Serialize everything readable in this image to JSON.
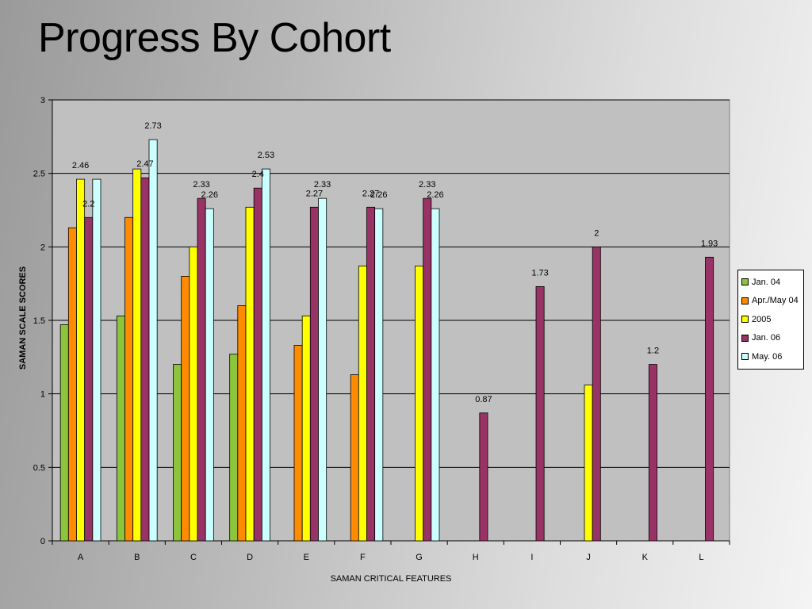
{
  "slide": {
    "title": "Progress By Cohort"
  },
  "chart_data": {
    "type": "bar",
    "xlabel": "SAMAN CRITICAL FEATURES",
    "ylabel": "SAMAN SCALE SCORES",
    "ylim": [
      0,
      3
    ],
    "yticks": [
      "0",
      "0.5",
      "1",
      "1.5",
      "2",
      "2.5",
      "3"
    ],
    "grid": true,
    "legend_position": "right",
    "categories": [
      "A",
      "B",
      "C",
      "D",
      "E",
      "F",
      "G",
      "H",
      "I",
      "J",
      "K",
      "L"
    ],
    "series": [
      {
        "name": "Jan. 04",
        "color": "#8cc43c",
        "values": [
          1.47,
          1.53,
          1.2,
          1.27,
          null,
          null,
          null,
          null,
          null,
          null,
          null,
          null
        ]
      },
      {
        "name": "Apr./May 04",
        "color": "#ff8c00",
        "values": [
          2.13,
          2.2,
          1.8,
          1.6,
          1.33,
          1.13,
          null,
          null,
          null,
          null,
          null,
          null
        ]
      },
      {
        "name": "2005",
        "color": "#ffff00",
        "values": [
          2.46,
          2.53,
          2.0,
          2.27,
          1.53,
          1.87,
          1.87,
          null,
          null,
          1.06,
          null,
          null
        ]
      },
      {
        "name": "Jan. 06",
        "color": "#993366",
        "values": [
          2.2,
          2.47,
          2.33,
          2.4,
          2.27,
          2.27,
          2.33,
          0.87,
          1.73,
          2.0,
          1.2,
          1.93
        ]
      },
      {
        "name": "May. 06",
        "color": "#ccffff",
        "values": [
          2.46,
          2.73,
          2.26,
          2.53,
          2.33,
          2.26,
          2.26,
          null,
          null,
          null,
          null,
          null
        ]
      }
    ],
    "data_labels": [
      {
        "category": "A",
        "series": "2005",
        "text": "2.46"
      },
      {
        "category": "A",
        "series": "Jan. 06",
        "text": "2.2"
      },
      {
        "category": "B",
        "series": "Jan. 06",
        "text": "2.47"
      },
      {
        "category": "B",
        "series": "May. 06",
        "text": "2.73"
      },
      {
        "category": "C",
        "series": "Jan. 06",
        "text": "2.33"
      },
      {
        "category": "C",
        "series": "May. 06",
        "text": "2.26"
      },
      {
        "category": "D",
        "series": "Jan. 06",
        "text": "2.4"
      },
      {
        "category": "D",
        "series": "May. 06",
        "text": "2.53"
      },
      {
        "category": "E",
        "series": "Jan. 06",
        "text": "2.27"
      },
      {
        "category": "E",
        "series": "May. 06",
        "text": "2.33"
      },
      {
        "category": "F",
        "series": "Jan. 06",
        "text": "2.27"
      },
      {
        "category": "F",
        "series": "May. 06",
        "text": "2.26"
      },
      {
        "category": "G",
        "series": "Jan. 06",
        "text": "2.33"
      },
      {
        "category": "G",
        "series": "May. 06",
        "text": "2.26"
      },
      {
        "category": "H",
        "series": "Jan. 06",
        "text": "0.87"
      },
      {
        "category": "I",
        "series": "Jan. 06",
        "text": "1.73"
      },
      {
        "category": "J",
        "series": "Jan. 06",
        "text": "2"
      },
      {
        "category": "K",
        "series": "Jan. 06",
        "text": "1.2"
      },
      {
        "category": "L",
        "series": "Jan. 06",
        "text": "1.93"
      }
    ]
  }
}
